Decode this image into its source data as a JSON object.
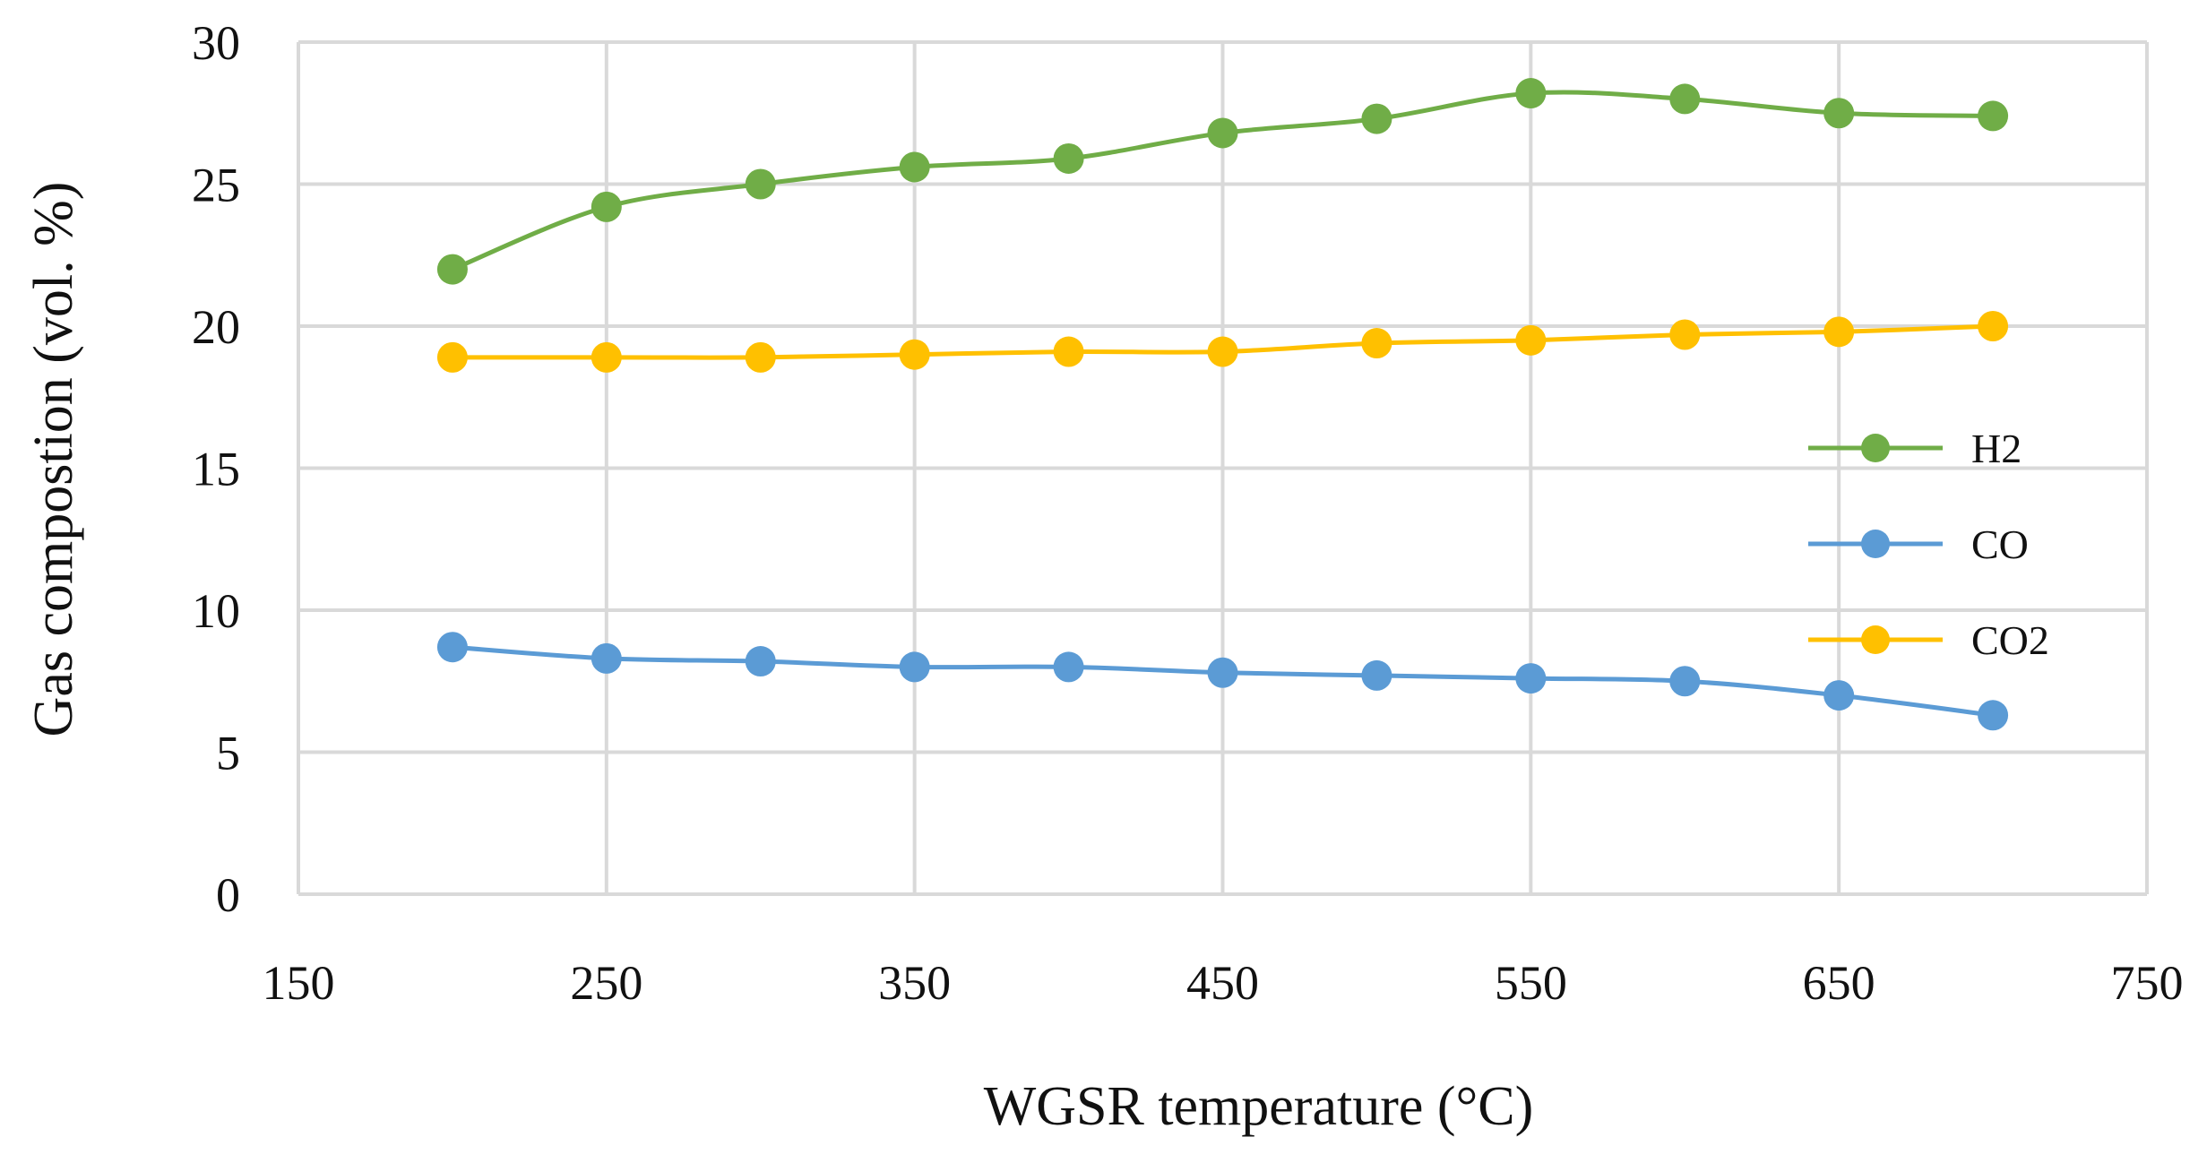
{
  "chart_data": {
    "type": "scatter",
    "title": "",
    "xlabel": "WGSR temperature (°C)",
    "ylabel": "Gas compostion (vol. %)",
    "xlim": [
      150,
      750
    ],
    "ylim": [
      0,
      30
    ],
    "xticks": [
      "150",
      "250",
      "350",
      "450",
      "550",
      "650",
      "750"
    ],
    "yticks": [
      "0",
      "5",
      "10",
      "15",
      "20",
      "25",
      "30"
    ],
    "grid": true,
    "legend_position": "right",
    "x": [
      200,
      250,
      300,
      350,
      400,
      450,
      500,
      550,
      600,
      650,
      700
    ],
    "series": [
      {
        "name": "H2",
        "color": "#70ad47",
        "values": [
          22.0,
          24.2,
          25.0,
          25.6,
          25.9,
          26.8,
          27.3,
          28.2,
          28.0,
          27.5,
          27.4
        ]
      },
      {
        "name": "CO",
        "color": "#5b9bd5",
        "values": [
          8.7,
          8.3,
          8.2,
          8.0,
          8.0,
          7.8,
          7.7,
          7.6,
          7.5,
          7.0,
          6.3
        ]
      },
      {
        "name": "CO2",
        "color": "#ffc000",
        "values": [
          18.9,
          18.9,
          18.9,
          19.0,
          19.1,
          19.1,
          19.4,
          19.5,
          19.7,
          19.8,
          20.0
        ]
      }
    ]
  }
}
